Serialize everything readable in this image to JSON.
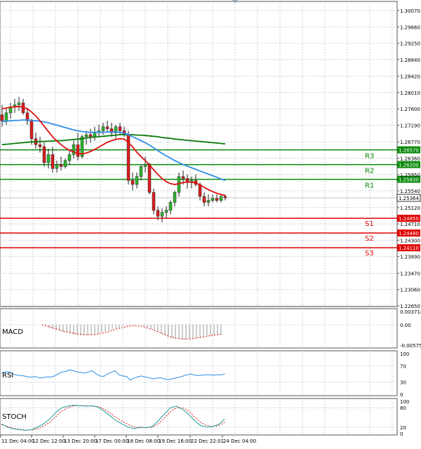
{
  "chart_data": [
    {
      "type": "candlestick",
      "title": "",
      "y_ticks": [
        "1.30070",
        "1.29660",
        "1.29250",
        "1.28840",
        "1.28420",
        "1.28010",
        "1.27600",
        "1.27190",
        "1.26770",
        "1.26360",
        "1.25950",
        "1.25540",
        "1.25120",
        "1.24710",
        "1.24300",
        "1.23890",
        "1.23470",
        "1.23060",
        "1.22650"
      ],
      "ylim": [
        1.2265,
        1.3007
      ],
      "x_ticks": [
        "11 Dec 04:00",
        "12 Dec 12:00",
        "13 Dec 20:00",
        "17 Dec 00:00",
        "18 Dec 08:00",
        "19 Dec 16:00",
        "22 Dec 22:01",
        "24 Dec 04:00"
      ],
      "current_price": "1.25364",
      "levels": [
        {
          "name": "R3",
          "value": 1.2657,
          "label": "1.26570",
          "color": "#0a8a0a"
        },
        {
          "name": "R2",
          "value": 1.262,
          "label": "1.26200",
          "color": "#0a8a0a"
        },
        {
          "name": "R1",
          "value": 1.2583,
          "label": "1.25830",
          "color": "#0a8a0a"
        },
        {
          "name": "S1",
          "value": 1.2485,
          "label": "1.24850",
          "color": "#e00000"
        },
        {
          "name": "S2",
          "value": 1.2448,
          "label": "1.24480",
          "color": "#e00000"
        },
        {
          "name": "S3",
          "value": 1.2411,
          "label": "1.24110",
          "color": "#e00000"
        }
      ],
      "candles": [
        [
          1.2745,
          1.277,
          1.2715,
          1.273
        ],
        [
          1.273,
          1.276,
          1.272,
          1.275
        ],
        [
          1.275,
          1.2775,
          1.2735,
          1.2765
        ],
        [
          1.2765,
          1.2785,
          1.275,
          1.277
        ],
        [
          1.277,
          1.279,
          1.2755,
          1.2775
        ],
        [
          1.2775,
          1.2785,
          1.2745,
          1.275
        ],
        [
          1.275,
          1.276,
          1.272,
          1.273
        ],
        [
          1.273,
          1.2735,
          1.267,
          1.2685
        ],
        [
          1.2685,
          1.27,
          1.266,
          1.267
        ],
        [
          1.267,
          1.269,
          1.265,
          1.2665
        ],
        [
          1.2665,
          1.2675,
          1.2615,
          1.2625
        ],
        [
          1.2625,
          1.266,
          1.261,
          1.2645
        ],
        [
          1.2645,
          1.2665,
          1.26,
          1.261
        ],
        [
          1.261,
          1.263,
          1.26,
          1.262
        ],
        [
          1.262,
          1.264,
          1.2605,
          1.2615
        ],
        [
          1.2615,
          1.2635,
          1.261,
          1.263
        ],
        [
          1.263,
          1.2655,
          1.262,
          1.2645
        ],
        [
          1.2645,
          1.268,
          1.2635,
          1.267
        ],
        [
          1.267,
          1.27,
          1.263,
          1.264
        ],
        [
          1.264,
          1.2695,
          1.2635,
          1.269
        ],
        [
          1.269,
          1.2705,
          1.267,
          1.2695
        ],
        [
          1.2695,
          1.271,
          1.2675,
          1.269
        ],
        [
          1.269,
          1.2715,
          1.268,
          1.27
        ],
        [
          1.27,
          1.272,
          1.269,
          1.2705
        ],
        [
          1.2705,
          1.2725,
          1.2695,
          1.2715
        ],
        [
          1.2715,
          1.273,
          1.27,
          1.271
        ],
        [
          1.271,
          1.2725,
          1.269,
          1.27
        ],
        [
          1.27,
          1.272,
          1.2685,
          1.2715
        ],
        [
          1.2715,
          1.2725,
          1.2695,
          1.2705
        ],
        [
          1.2705,
          1.2715,
          1.269,
          1.2695
        ],
        [
          1.2695,
          1.2705,
          1.257,
          1.258
        ],
        [
          1.258,
          1.26,
          1.2555,
          1.257
        ],
        [
          1.257,
          1.26,
          1.256,
          1.259
        ],
        [
          1.259,
          1.262,
          1.258,
          1.2615
        ],
        [
          1.2615,
          1.264,
          1.26,
          1.262
        ],
        [
          1.262,
          1.2625,
          1.2545,
          1.255
        ],
        [
          1.255,
          1.256,
          1.2495,
          1.2505
        ],
        [
          1.2505,
          1.2515,
          1.248,
          1.249
        ],
        [
          1.249,
          1.251,
          1.2475,
          1.25
        ],
        [
          1.25,
          1.2515,
          1.2485,
          1.2505
        ],
        [
          1.2505,
          1.253,
          1.2495,
          1.2525
        ],
        [
          1.2525,
          1.2555,
          1.2515,
          1.255
        ],
        [
          1.255,
          1.26,
          1.254,
          1.259
        ],
        [
          1.259,
          1.2605,
          1.257,
          1.2585
        ],
        [
          1.2585,
          1.2595,
          1.256,
          1.2575
        ],
        [
          1.2575,
          1.259,
          1.256,
          1.258
        ],
        [
          1.258,
          1.2595,
          1.2565,
          1.257
        ],
        [
          1.257,
          1.2575,
          1.253,
          1.254
        ],
        [
          1.254,
          1.255,
          1.2515,
          1.2525
        ],
        [
          1.2525,
          1.2545,
          1.2515,
          1.253
        ],
        [
          1.253,
          1.2545,
          1.2525,
          1.2535
        ],
        [
          1.2535,
          1.2545,
          1.2525,
          1.253
        ],
        [
          1.253,
          1.2545,
          1.2525,
          1.254
        ],
        [
          1.254,
          1.2545,
          1.253,
          1.2536
        ]
      ],
      "ma_red": [
        1.276,
        1.2762,
        1.2764,
        1.2765,
        1.2766,
        1.2764,
        1.276,
        1.2752,
        1.2742,
        1.273,
        1.2716,
        1.2703,
        1.269,
        1.2679,
        1.267,
        1.2662,
        1.2656,
        1.2652,
        1.2648,
        1.2647,
        1.2649,
        1.2653,
        1.2658,
        1.2664,
        1.267,
        1.2676,
        1.268,
        1.2683,
        1.2685,
        1.2684,
        1.2676,
        1.2664,
        1.2651,
        1.264,
        1.263,
        1.2619,
        1.2607,
        1.2595,
        1.2585,
        1.2577,
        1.2572,
        1.257,
        1.2572,
        1.2575,
        1.2576,
        1.2576,
        1.2574,
        1.2569,
        1.2563,
        1.2557,
        1.2552,
        1.2548,
        1.2545,
        1.2542
      ],
      "ma_blue": [
        1.2728,
        1.2729,
        1.273,
        1.2731,
        1.2731,
        1.2732,
        1.2732,
        1.2731,
        1.273,
        1.2729,
        1.2727,
        1.2725,
        1.2722,
        1.2719,
        1.2716,
        1.2713,
        1.271,
        1.2707,
        1.2705,
        1.2703,
        1.2702,
        1.2701,
        1.2701,
        1.2701,
        1.2701,
        1.2702,
        1.2702,
        1.2702,
        1.2701,
        1.2699,
        1.2695,
        1.269,
        1.2685,
        1.268,
        1.2675,
        1.2669,
        1.2662,
        1.2655,
        1.2648,
        1.2642,
        1.2636,
        1.263,
        1.2625,
        1.262,
        1.2616,
        1.2612,
        1.2608,
        1.2604,
        1.26,
        1.2596,
        1.2592,
        1.2588,
        1.2584,
        1.258
      ],
      "ma_green": [
        1.267,
        1.2671,
        1.2672,
        1.2673,
        1.2674,
        1.2675,
        1.2676,
        1.2677,
        1.2677,
        1.2678,
        1.2678,
        1.2679,
        1.2679,
        1.268,
        1.268,
        1.2681,
        1.2682,
        1.2683,
        1.2684,
        1.2685,
        1.2687,
        1.2688,
        1.2689,
        1.269,
        1.2691,
        1.2692,
        1.2693,
        1.2694,
        1.2695,
        1.2695,
        1.2695,
        1.2695,
        1.2694,
        1.2694,
        1.2693,
        1.2692,
        1.2691,
        1.269,
        1.2688,
        1.2687,
        1.2686,
        1.2684,
        1.2683,
        1.2682,
        1.2681,
        1.268,
        1.2679,
        1.2678,
        1.2677,
        1.2676,
        1.2675,
        1.2674,
        1.2673,
        1.2672
      ]
    },
    {
      "type": "line",
      "title": "MACD",
      "y_ticks": [
        "0.003714",
        "0.00",
        "-0.005752"
      ],
      "ylim": [
        -0.005752,
        0.003714
      ],
      "histogram": [
        0.0,
        -0.0004,
        -0.0008,
        -0.0012,
        -0.0015,
        -0.0017,
        -0.002,
        -0.0023,
        -0.0026,
        -0.0028,
        -0.0029,
        -0.003,
        -0.003,
        -0.003,
        -0.0029,
        -0.0027,
        -0.0025,
        -0.0022,
        -0.0019,
        -0.0016,
        -0.0013,
        -0.001,
        -0.0008,
        -0.0005,
        -0.0003,
        -0.0002,
        -0.0001,
        0.0,
        -0.0001,
        -0.0005,
        -0.0008,
        -0.0012,
        -0.0016,
        -0.002,
        -0.0025,
        -0.003,
        -0.0034,
        -0.0037,
        -0.004,
        -0.0041,
        -0.0042,
        -0.0042,
        -0.0041,
        -0.004,
        -0.0038,
        -0.0036,
        -0.0034,
        -0.0032,
        -0.0031,
        -0.003,
        -0.0029,
        -0.0028
      ],
      "signal": [
        0.0,
        -0.0003,
        -0.0006,
        -0.0009,
        -0.0012,
        -0.0015,
        -0.0018,
        -0.002,
        -0.0022,
        -0.0024,
        -0.0026,
        -0.0027,
        -0.0028,
        -0.0028,
        -0.0028,
        -0.0028,
        -0.0026,
        -0.0024,
        -0.0022,
        -0.0019,
        -0.0016,
        -0.0013,
        -0.001,
        -0.0008,
        -0.0006,
        -0.0004,
        -0.0003,
        -0.0003,
        -0.0004,
        -0.0006,
        -0.0009,
        -0.0012,
        -0.0016,
        -0.002,
        -0.0024,
        -0.0028,
        -0.0032,
        -0.0035,
        -0.0037,
        -0.0039,
        -0.004,
        -0.004,
        -0.004,
        -0.0039,
        -0.0037,
        -0.0036,
        -0.0034,
        -0.0032,
        -0.0031,
        -0.0029,
        -0.0028,
        -0.0027
      ]
    },
    {
      "type": "line",
      "title": "RSI",
      "y_ticks": [
        "100",
        "70",
        "30",
        "0"
      ],
      "ylim": [
        0,
        100
      ],
      "values": [
        52,
        55,
        55,
        50,
        47,
        46,
        45,
        43,
        42,
        44,
        40,
        41,
        43,
        42,
        45,
        50,
        55,
        56,
        60,
        58,
        55,
        54,
        52,
        55,
        58,
        50,
        45,
        44,
        50,
        54,
        58,
        48,
        45,
        44,
        35,
        40,
        43,
        45,
        42,
        41,
        38,
        40,
        40,
        38,
        36,
        38,
        40,
        42,
        45,
        48,
        50,
        47,
        46,
        47,
        48,
        48,
        47,
        48,
        48,
        50
      ]
    },
    {
      "type": "line",
      "title": "STOCH",
      "y_ticks": [
        "100",
        "80",
        "20",
        "0"
      ],
      "ylim": [
        0,
        100
      ],
      "k": [
        30,
        20,
        15,
        12,
        10,
        12,
        20,
        30,
        45,
        65,
        80,
        85,
        88,
        86,
        85,
        86,
        82,
        70,
        55,
        40,
        30,
        20,
        15,
        20,
        18,
        22,
        40,
        60,
        80,
        85,
        75,
        60,
        40,
        25,
        20,
        22,
        28,
        45
      ],
      "d": [
        28,
        22,
        16,
        13,
        11,
        11,
        15,
        23,
        35,
        52,
        70,
        80,
        86,
        87,
        86,
        85,
        84,
        76,
        64,
        50,
        38,
        28,
        20,
        18,
        19,
        20,
        30,
        48,
        68,
        80,
        80,
        70,
        52,
        35,
        25,
        22,
        25,
        35
      ]
    }
  ]
}
